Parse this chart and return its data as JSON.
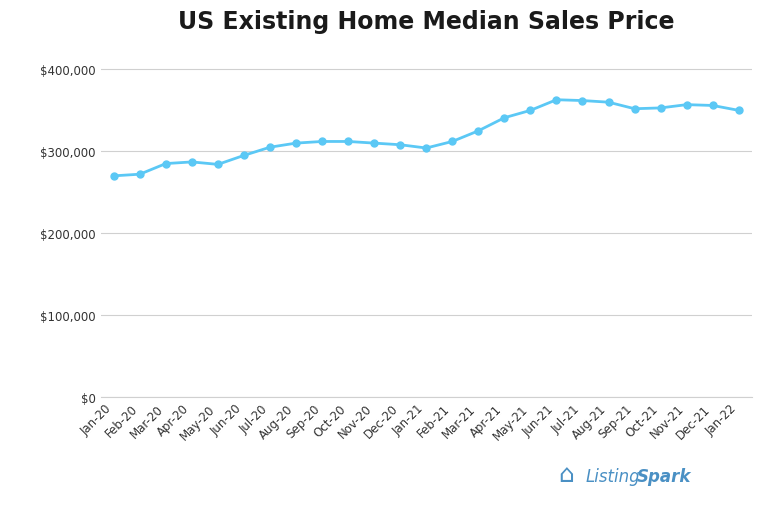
{
  "title": "US Existing Home Median Sales Price",
  "labels": [
    "Jan-20",
    "Feb-20",
    "Mar-20",
    "Apr-20",
    "May-20",
    "Jun-20",
    "Jul-20",
    "Aug-20",
    "Sep-20",
    "Oct-20",
    "Nov-20",
    "Dec-20",
    "Jan-21",
    "Feb-21",
    "Mar-21",
    "Apr-21",
    "May-21",
    "Jun-21",
    "Jul-21",
    "Aug-21",
    "Sep-21",
    "Oct-21",
    "Nov-21",
    "Dec-21",
    "Jan-22"
  ],
  "values": [
    270000,
    272000,
    285000,
    287000,
    284000,
    295000,
    305000,
    310000,
    312000,
    312000,
    310000,
    308000,
    304000,
    312000,
    325000,
    341000,
    350000,
    363000,
    362000,
    360000,
    352000,
    353000,
    357000,
    356000,
    350000
  ],
  "line_color": "#5bc8f5",
  "marker_color": "#5bc8f5",
  "background_color": "#ffffff",
  "grid_color": "#d0d0d0",
  "title_fontsize": 17,
  "tick_fontsize": 8.5,
  "ylim": [
    0,
    430000
  ],
  "yticks": [
    0,
    100000,
    200000,
    300000,
    400000
  ],
  "logo_text_listing": "Listing",
  "logo_text_spark": "Spark",
  "logo_color": "#4a90c4"
}
